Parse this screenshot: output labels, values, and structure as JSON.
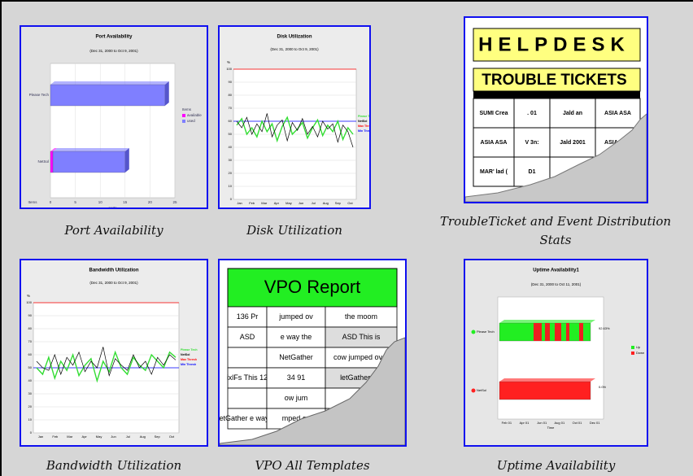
{
  "tiles": [
    {
      "caption": "Port Availability",
      "title": "Port Availability",
      "subtitle": "(Dec 31, 2000 to Oct 9, 2001)",
      "chart": {
        "type": "hbar",
        "categories": [
          "Please Tech",
          "NetSol"
        ],
        "series": [
          {
            "name": "available",
            "color": "#ff00ff",
            "values": [
              0,
              0.5
            ]
          },
          {
            "name": "used",
            "color": "#7f7fff",
            "values": [
              23,
              14.5
            ]
          }
        ],
        "xlim": [
          0,
          25
        ],
        "xticks": [
          0,
          5,
          10,
          15,
          20,
          25
        ],
        "xlabel": "ports",
        "ylabel": "Items",
        "legend_title": "Items"
      }
    },
    {
      "caption": "Disk Utilization",
      "title": "Disk Utilization",
      "subtitle": "(Dec 31, 2000 to Oct 9, 2001)",
      "chart": {
        "type": "line",
        "ylabel": "%",
        "ylim": [
          0,
          100
        ],
        "yticks": [
          0,
          10,
          20,
          30,
          40,
          50,
          60,
          70,
          80,
          90,
          100
        ],
        "categories": [
          "Jan",
          "Feb",
          "Mar",
          "Apr",
          "May",
          "Jun",
          "Jul",
          "Aug",
          "Sep",
          "Oct"
        ],
        "series": [
          {
            "name": "Please Tech",
            "color": "#33dd33",
            "values": [
              57,
              62,
              50,
              55,
              48,
              60,
              52,
              58,
              45,
              56,
              63,
              50,
              54,
              59,
              47,
              55,
              61,
              49,
              57,
              52,
              60,
              46,
              55,
              50
            ]
          },
          {
            "name": "NetSol",
            "color": "#000000",
            "values": [
              60,
              55,
              63,
              50,
              58,
              52,
              66,
              48,
              57,
              61,
              45,
              59,
              53,
              62,
              50,
              56,
              48,
              60,
              54,
              58,
              44,
              57,
              52,
              40
            ]
          }
        ],
        "thresholds": [
          {
            "name": "Max Thresh",
            "color": "#ff0000",
            "value": 100
          },
          {
            "name": "Min Thresh",
            "color": "#0000ff",
            "value": 60
          }
        ]
      }
    },
    {
      "caption": "TroubleTicket and Event Distribution Stats",
      "title": "HELPDESK",
      "subtitle": "TROUBLE TICKETS",
      "rows": [
        [
          "SUMI Crea",
          ". 01",
          "Jald an",
          "ASIA ASA"
        ],
        [
          "ASIA ASA",
          "V 3n:",
          "Jald 2001",
          "ASIA ASA"
        ],
        [
          "MAR' lad (",
          "D1",
          "",
          ""
        ]
      ]
    },
    {
      "caption": "Bandwidth Utilization",
      "title": "Bandwidth Utilization",
      "subtitle": "(Dec 31, 2000 to Oct 9, 2001)",
      "chart": {
        "type": "line",
        "ylabel": "%",
        "ylim": [
          0,
          100
        ],
        "yticks": [
          0,
          10,
          20,
          30,
          40,
          50,
          60,
          70,
          80,
          90,
          100
        ],
        "categories": [
          "Jan",
          "Feb",
          "Mar",
          "Apr",
          "May",
          "Jun",
          "Jul",
          "Aug",
          "Sep",
          "Oct"
        ],
        "series": [
          {
            "name": "Please Tech",
            "color": "#33dd33",
            "values": [
              50,
              45,
              58,
              42,
              55,
              48,
              60,
              44,
              52,
              57,
              40,
              55,
              47,
              62,
              50,
              45,
              58,
              52,
              48,
              60,
              55,
              50,
              62,
              58
            ]
          },
          {
            "name": "NetSol",
            "color": "#000000",
            "values": [
              55,
              50,
              48,
              60,
              45,
              58,
              52,
              62,
              47,
              55,
              50,
              66,
              44,
              57,
              52,
              48,
              60,
              50,
              55,
              45,
              58,
              52,
              60,
              56
            ]
          }
        ],
        "thresholds": [
          {
            "name": "Max Thresh",
            "color": "#ff0000",
            "value": 100
          },
          {
            "name": "Min Thresh",
            "color": "#0000ff",
            "value": 50
          }
        ]
      }
    },
    {
      "caption": "VPO All Templates",
      "title": "VPO Report",
      "rows": [
        [
          "136 Pr",
          "jumped ov",
          "the moom"
        ],
        [
          "ASD",
          "e way the",
          "ASD This is"
        ],
        [
          "",
          "NetGather",
          "cow jumped over"
        ],
        [
          "ixlFs This 12",
          "34 91",
          "letGather Thi"
        ],
        [
          "",
          "ow jum",
          "the"
        ],
        [
          "letGather e way th",
          "mped ov",
          ""
        ]
      ]
    },
    {
      "caption": "Uptime Availability",
      "title": "Uptime Availability1",
      "subtitle": "(Dec 31, 2000 to Oct 11, 2001)",
      "categories": [
        "Please Tech",
        "NetSol"
      ],
      "labels": [
        "92.63%",
        "0.0%"
      ],
      "xticks": [
        "Feb 01",
        "Apr 01",
        "Jun 01",
        "Aug 01",
        "Oct 01",
        "Dec 01"
      ],
      "xlabel": "Time",
      "legend": [
        "Up",
        "Down"
      ]
    }
  ]
}
